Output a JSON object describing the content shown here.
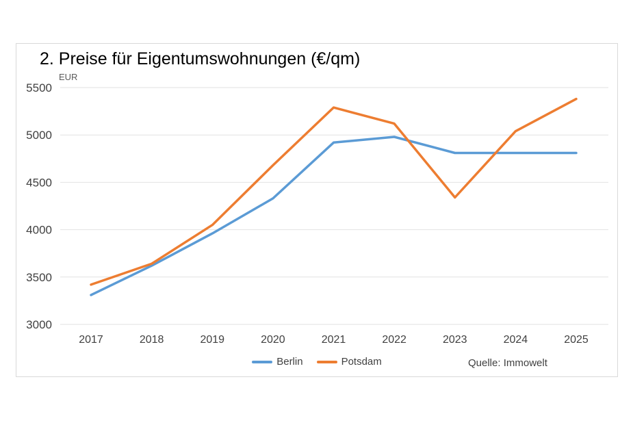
{
  "card": {
    "title": "2. Preise für Eigentumswohnungen (€/qm)",
    "source": "Quelle: Immowelt"
  },
  "chart_data": {
    "type": "line",
    "title": "2. Preise für Eigentumswohnungen (€/qm)",
    "categories": [
      "2017",
      "2018",
      "2019",
      "2020",
      "2021",
      "2022",
      "2023",
      "2024",
      "2025"
    ],
    "series": [
      {
        "name": "Berlin",
        "color": "#5b9bd5",
        "values": [
          3310,
          3620,
          3960,
          4330,
          4920,
          4980,
          4810,
          4810,
          4810
        ]
      },
      {
        "name": "Potsdam",
        "color": "#ed7d31",
        "values": [
          3420,
          3640,
          4050,
          4680,
          5290,
          5120,
          4340,
          5040,
          5380
        ]
      }
    ],
    "xlabel": "",
    "ylabel": "EUR",
    "ylim": [
      3000,
      5500
    ],
    "ytick_step": 500,
    "grid": true,
    "gridline_color": "#e2e2e2",
    "tick_color": "#404040",
    "legend_position": "bottom",
    "source": "Quelle: Immowelt"
  }
}
